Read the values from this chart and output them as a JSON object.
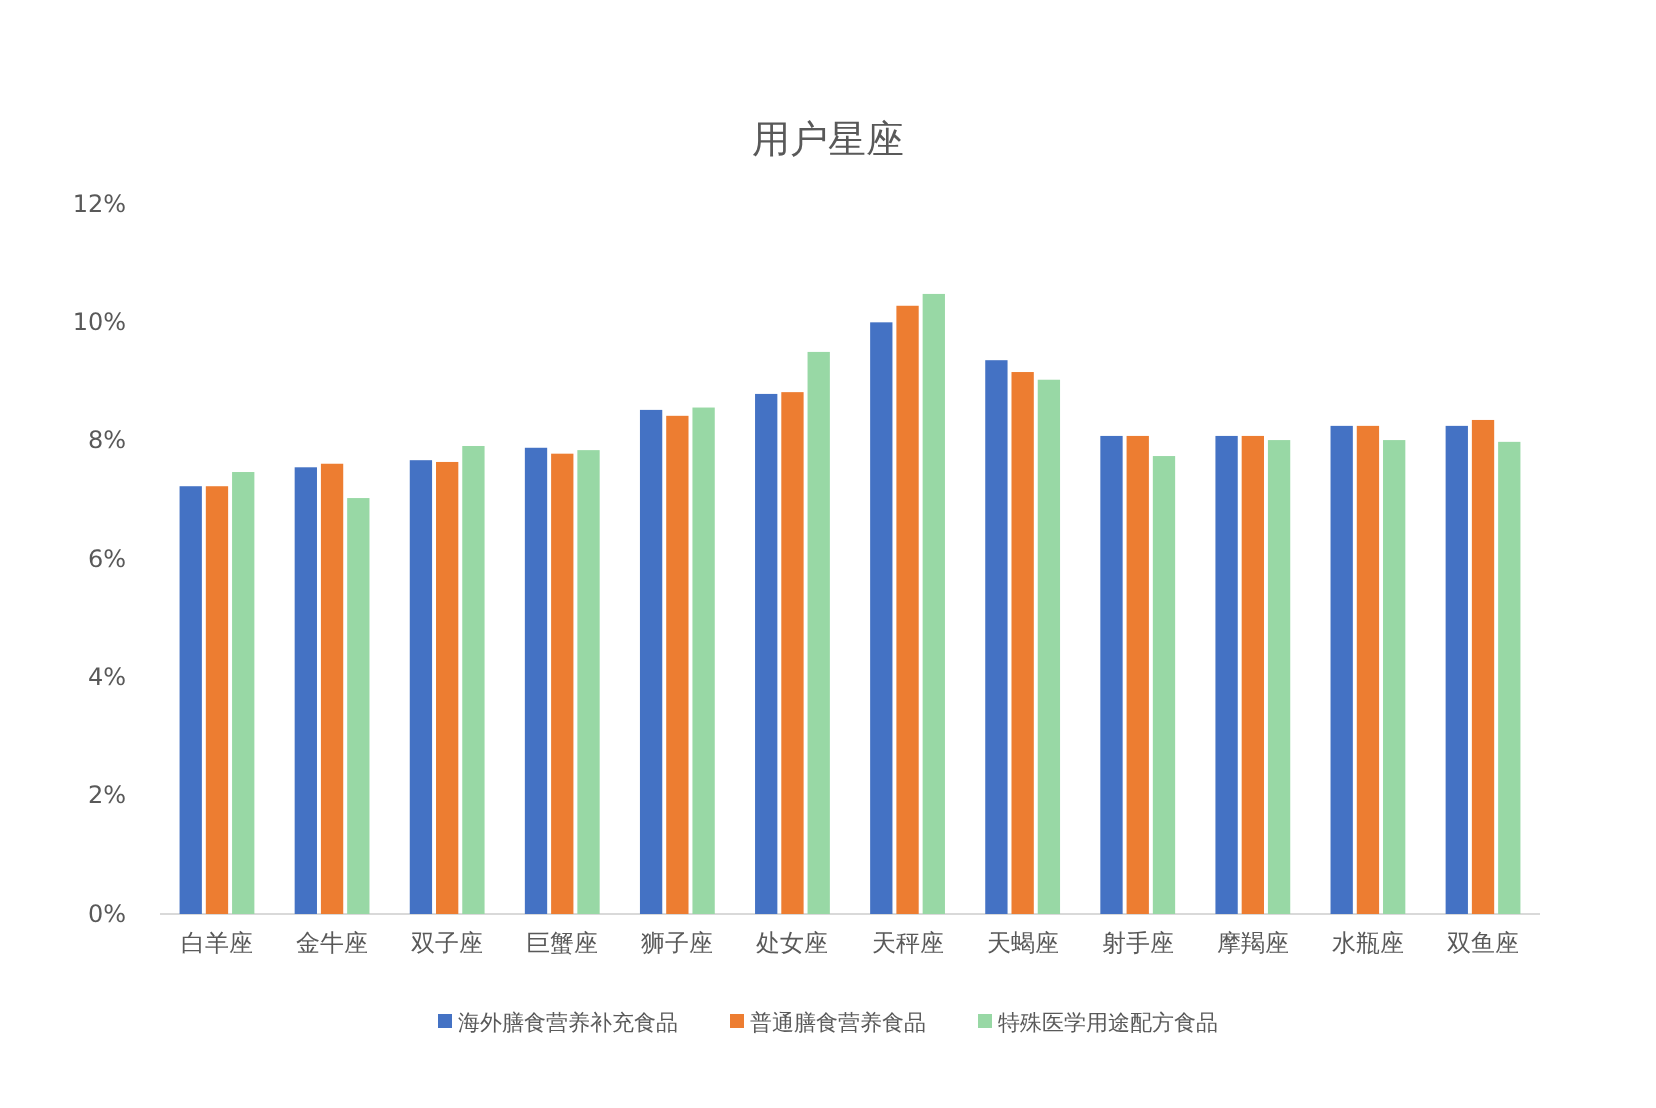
{
  "chart_data": {
    "type": "bar",
    "title": "用户星座",
    "categories": [
      "白羊座",
      "金牛座",
      "双子座",
      "巨蟹座",
      "狮子座",
      "处女座",
      "天秤座",
      "天蝎座",
      "射手座",
      "摩羯座",
      "水瓶座",
      "双鱼座"
    ],
    "series": [
      {
        "name": "海外膳食营养补充食品",
        "color": "#4472c4",
        "values": [
          7.23,
          7.55,
          7.67,
          7.88,
          8.52,
          8.79,
          10.0,
          9.36,
          8.08,
          8.08,
          8.25,
          8.25
        ]
      },
      {
        "name": "普通膳食营养食品",
        "color": "#ed7d31",
        "values": [
          7.23,
          7.61,
          7.64,
          7.78,
          8.42,
          8.82,
          10.28,
          9.16,
          8.08,
          8.08,
          8.25,
          8.35
        ]
      },
      {
        "name": "特殊医学用途配方食品",
        "color": "#98d8a5",
        "values": [
          7.47,
          7.03,
          7.91,
          7.84,
          8.56,
          9.5,
          10.48,
          9.03,
          7.74,
          8.01,
          8.01,
          7.98
        ]
      }
    ],
    "ylim": [
      0,
      12
    ],
    "yticks": [
      {
        "value": 0,
        "label": "0%"
      },
      {
        "value": 2,
        "label": "2%"
      },
      {
        "value": 4,
        "label": "4%"
      },
      {
        "value": 6,
        "label": "6%"
      },
      {
        "value": 8,
        "label": "8%"
      },
      {
        "value": 10,
        "label": "10%"
      },
      {
        "value": 12,
        "label": "12%"
      }
    ],
    "legend": "bottom"
  }
}
